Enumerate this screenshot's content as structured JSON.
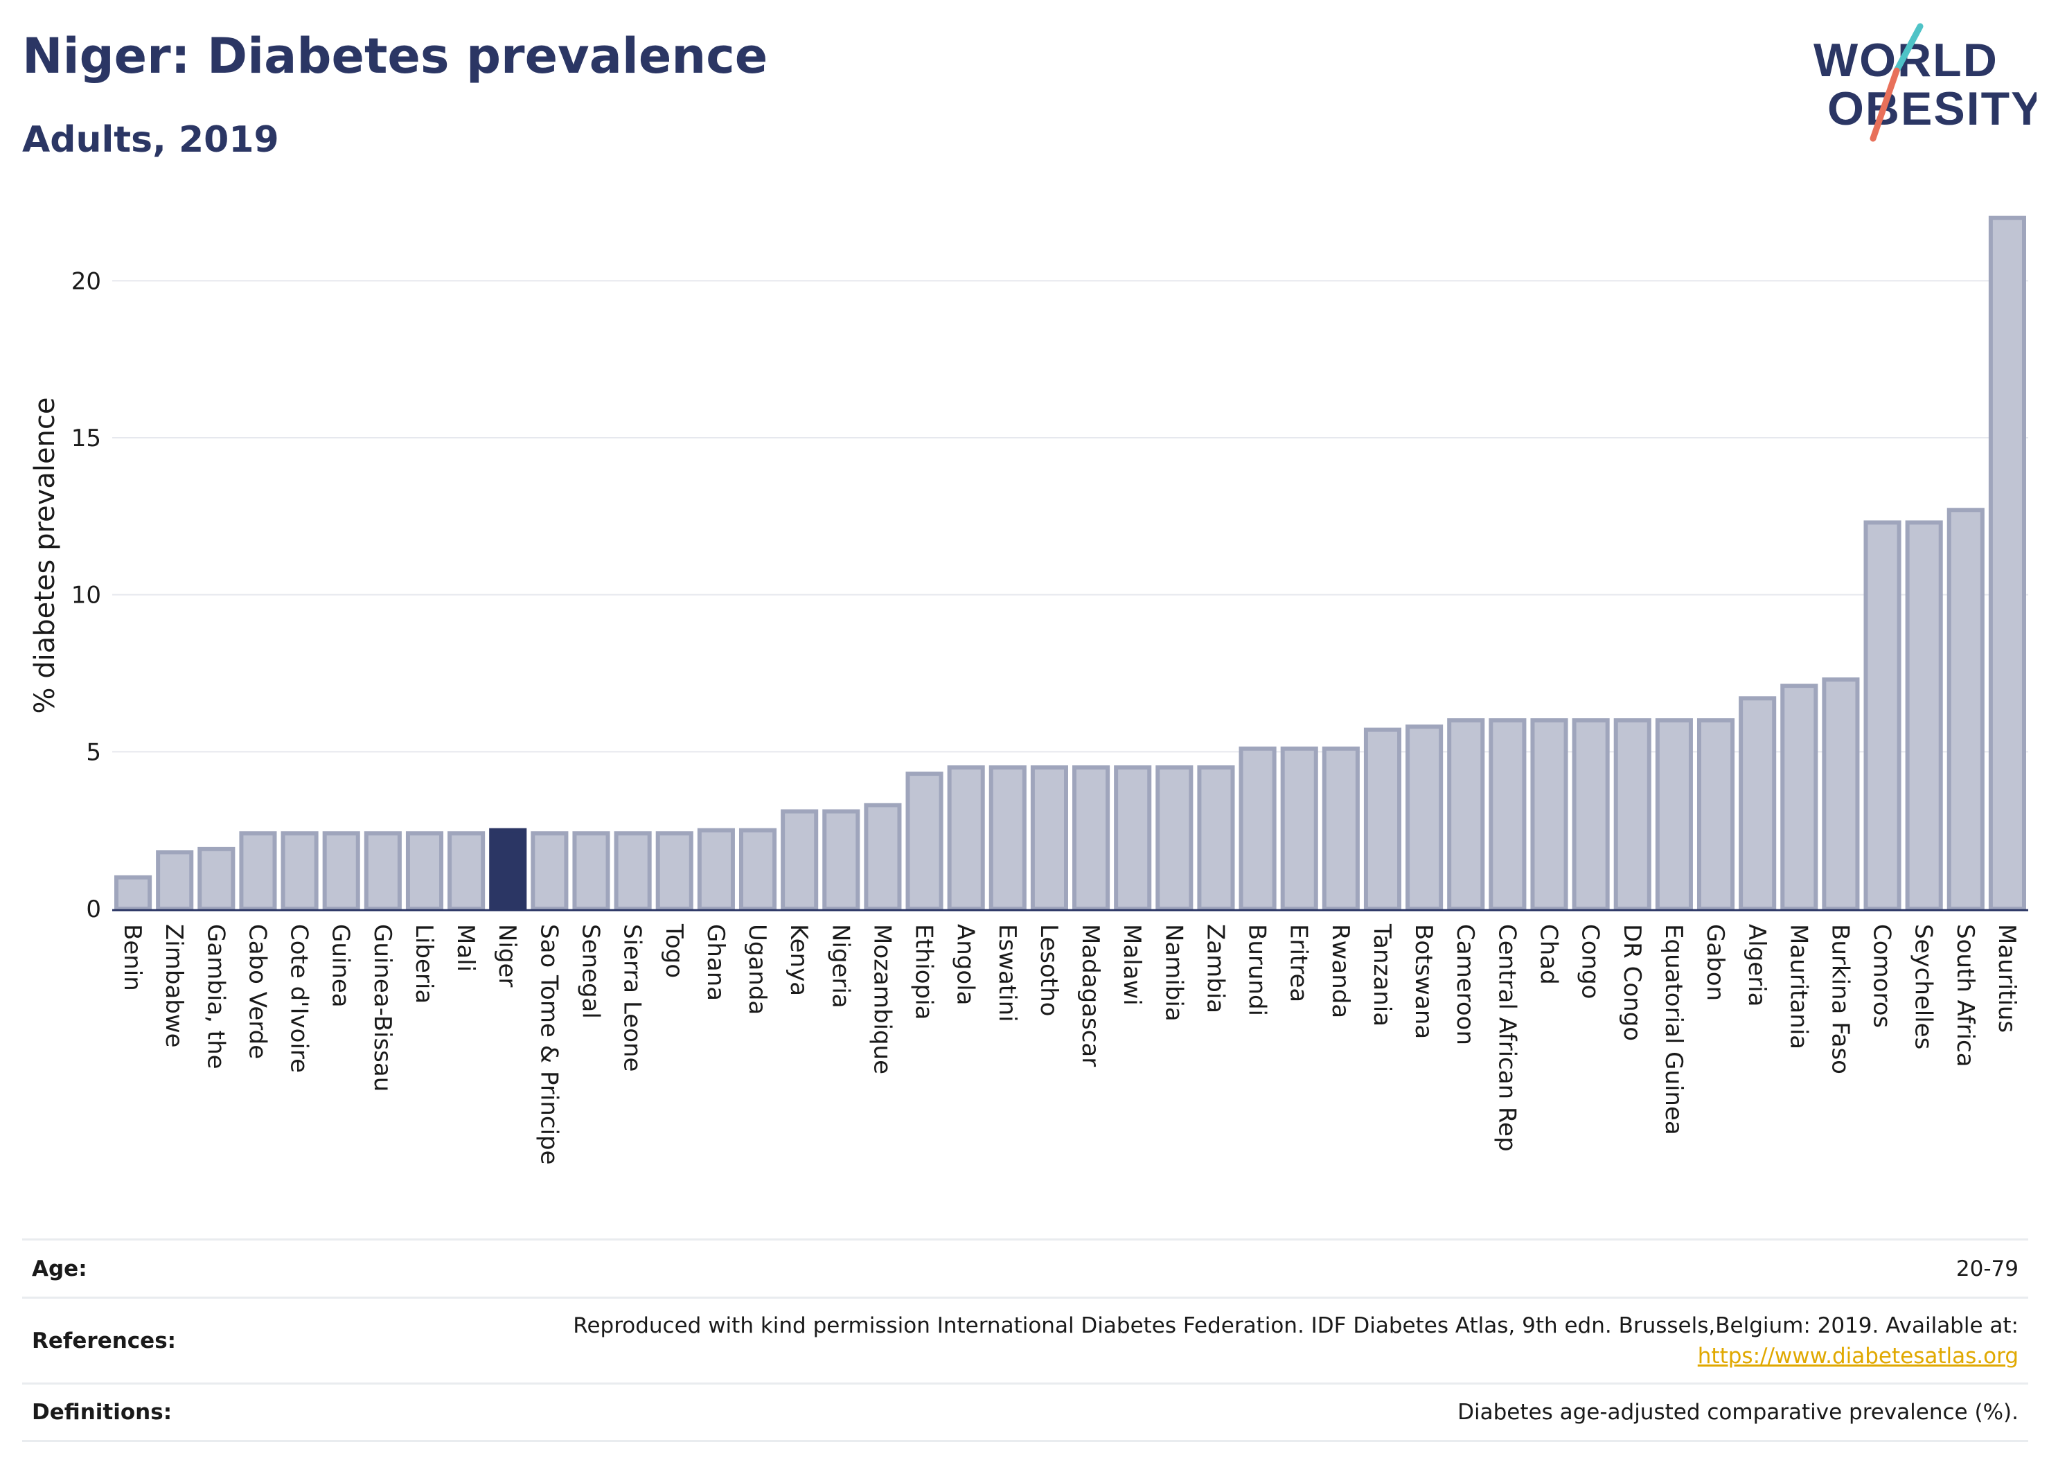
{
  "header": {
    "title": "Niger: Diabetes prevalence",
    "subtitle": "Adults, 2019"
  },
  "logo": {
    "line1": "WORLD",
    "line2": "OBESITY",
    "slash_colors": [
      "#4fc3c7",
      "#e8705a"
    ],
    "text_color": "#2b3664"
  },
  "chart_data": {
    "type": "bar",
    "title": "Niger: Diabetes prevalence",
    "subtitle": "Adults, 2019",
    "xlabel": "",
    "ylabel": "% diabetes prevalence",
    "ylim": [
      0,
      22.5
    ],
    "yticks": [
      0,
      5,
      10,
      15,
      20
    ],
    "grid": true,
    "highlight": "Niger",
    "colors": {
      "bar": "#c0c4d3",
      "bar_border": "#9fa5bc",
      "highlight": "#2b3664",
      "grid": "#e6e8ee",
      "axis": "#2b3664"
    },
    "categories": [
      "Benin",
      "Zimbabwe",
      "Gambia, the",
      "Cabo Verde",
      "Cote d'Ivoire",
      "Guinea",
      "Guinea-Bissau",
      "Liberia",
      "Mali",
      "Niger",
      "Sao Tome & Principe",
      "Senegal",
      "Sierra Leone",
      "Togo",
      "Ghana",
      "Uganda",
      "Kenya",
      "Nigeria",
      "Mozambique",
      "Ethiopia",
      "Angola",
      "Eswatini",
      "Lesotho",
      "Madagascar",
      "Malawi",
      "Namibia",
      "Zambia",
      "Burundi",
      "Eritrea",
      "Rwanda",
      "Tanzania",
      "Botswana",
      "Cameroon",
      "Central African Rep",
      "Chad",
      "Congo",
      "DR Congo",
      "Equatorial Guinea",
      "Gabon",
      "Algeria",
      "Mauritania",
      "Burkina Faso",
      "Comoros",
      "Seychelles",
      "South Africa",
      "Mauritius"
    ],
    "values": [
      1.0,
      1.8,
      1.9,
      2.4,
      2.4,
      2.4,
      2.4,
      2.4,
      2.4,
      2.5,
      2.4,
      2.4,
      2.4,
      2.4,
      2.5,
      2.5,
      3.1,
      3.1,
      3.3,
      4.3,
      4.5,
      4.5,
      4.5,
      4.5,
      4.5,
      4.5,
      4.5,
      5.1,
      5.1,
      5.1,
      5.7,
      5.8,
      6.0,
      6.0,
      6.0,
      6.0,
      6.0,
      6.0,
      6.0,
      6.7,
      7.1,
      7.3,
      12.3,
      12.3,
      12.7,
      22.0
    ]
  },
  "meta": {
    "age_label": "Age:",
    "age_value": "20-79",
    "references_label": "References:",
    "references_text": "Reproduced with kind permission International Diabetes Federation. IDF Diabetes Atlas, 9th edn. Brussels,Belgium: 2019. Available at:",
    "references_link": "https://www.diabetesatlas.org",
    "definitions_label": "Definitions:",
    "definitions_value": "Diabetes age-adjusted comparative prevalence (%)."
  }
}
